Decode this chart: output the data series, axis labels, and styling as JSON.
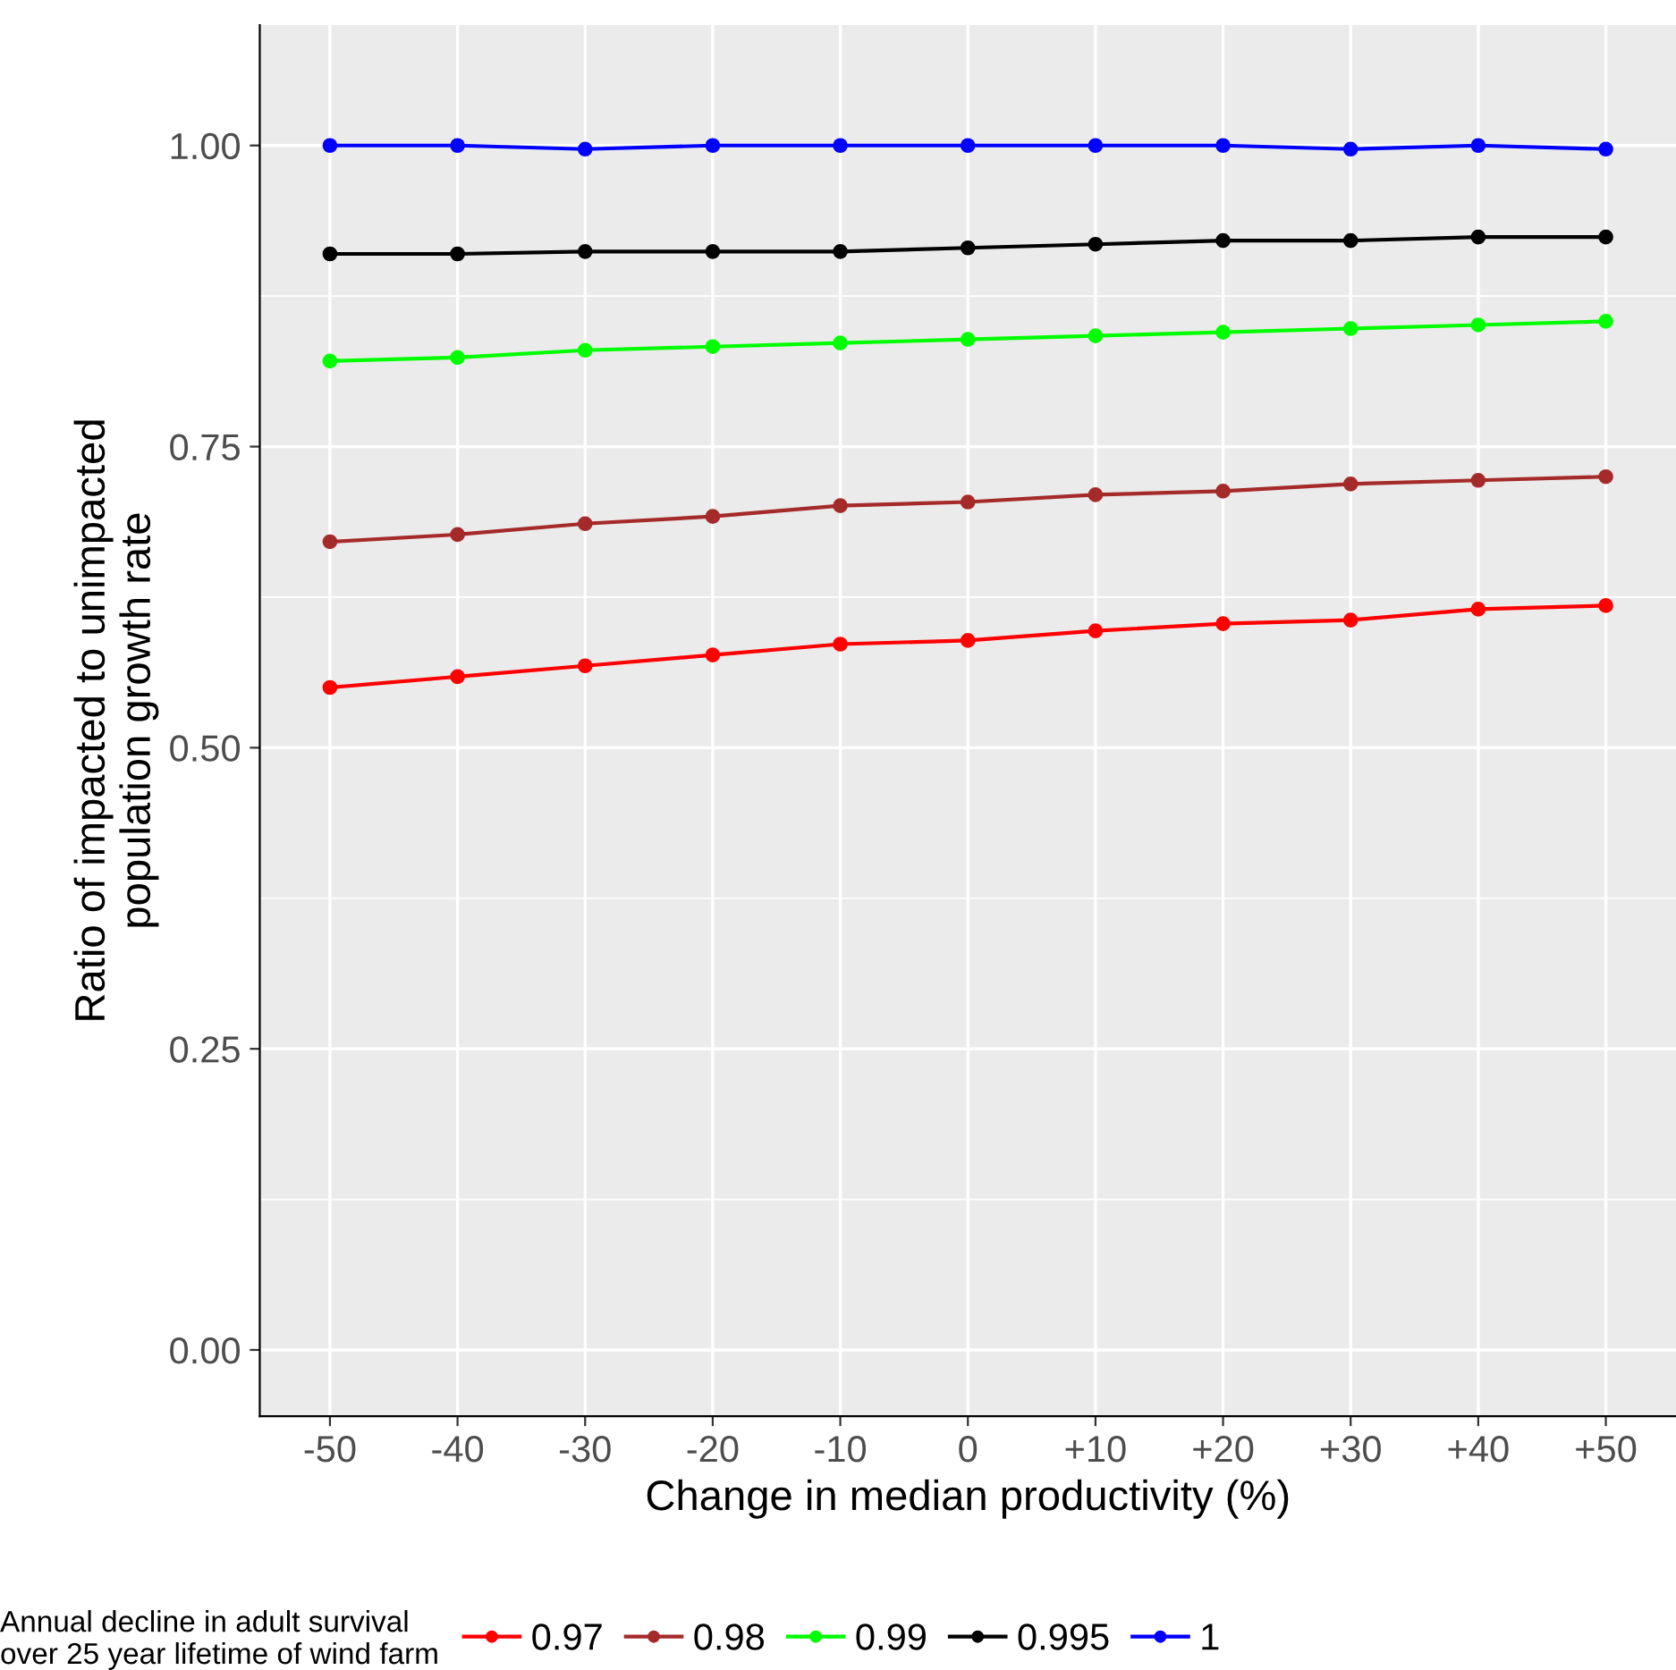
{
  "chart_data": {
    "type": "line",
    "xlabel": "Change in median productivity (%)",
    "ylabel": "Ratio of impacted to unimpacted\npopulation growth rate",
    "legend_title": "Annual decline in adult survival\nover 25 year lifetime of wind farm",
    "categories": [
      "-50",
      "-40",
      "-30",
      "-20",
      "-10",
      "0",
      "+10",
      "+20",
      "+30",
      "+40",
      "+50"
    ],
    "series": [
      {
        "name": "0.97",
        "color": "#ff0000",
        "values": [
          0.55,
          0.559,
          0.568,
          0.577,
          0.586,
          0.589,
          0.597,
          0.603,
          0.606,
          0.615,
          0.618
        ]
      },
      {
        "name": "0.98",
        "color": "#a52a2a",
        "values": [
          0.671,
          0.677,
          0.686,
          0.692,
          0.701,
          0.704,
          0.71,
          0.713,
          0.719,
          0.722,
          0.725
        ]
      },
      {
        "name": "0.99",
        "color": "#00ff00",
        "values": [
          0.821,
          0.824,
          0.83,
          0.833,
          0.836,
          0.839,
          0.842,
          0.845,
          0.848,
          0.851,
          0.854
        ]
      },
      {
        "name": "0.995",
        "color": "#000000",
        "values": [
          0.91,
          0.91,
          0.912,
          0.912,
          0.912,
          0.915,
          0.918,
          0.921,
          0.921,
          0.924,
          0.924
        ]
      },
      {
        "name": "1",
        "color": "#0000ff",
        "values": [
          1.0,
          1.0,
          0.997,
          1.0,
          1.0,
          1.0,
          1.0,
          1.0,
          0.997,
          1.0,
          0.997
        ]
      }
    ],
    "ylim": [
      -0.055,
      1.1
    ],
    "yticks": [
      {
        "value": 0,
        "label": "0.00"
      },
      {
        "value": 0.25,
        "label": "0.25"
      },
      {
        "value": 0.5,
        "label": "0.50"
      },
      {
        "value": 0.75,
        "label": "0.75"
      },
      {
        "value": 1,
        "label": "1.00"
      }
    ],
    "grid": true,
    "legend": "bottom",
    "marker": "circle",
    "line_style": "solid"
  }
}
